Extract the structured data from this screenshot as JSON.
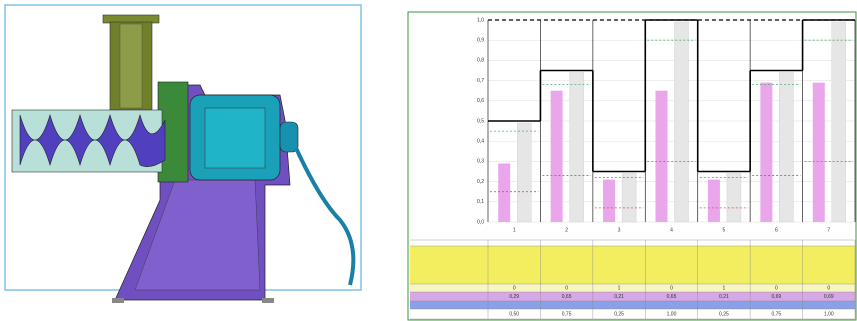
{
  "chart_data": {
    "type": "bar",
    "categories": [
      "1",
      "2",
      "3",
      "4",
      "5",
      "6",
      "7"
    ],
    "series": [
      {
        "kind": "bar",
        "color": "#eaa6ea",
        "values": [
          0.29,
          0.65,
          0.21,
          0.65,
          0.21,
          0.69,
          0.69
        ]
      },
      {
        "kind": "bar",
        "color": "#e6e6e6",
        "values": [
          0.49,
          0.74,
          0.24,
          0.99,
          0.24,
          0.74,
          0.99
        ]
      },
      {
        "kind": "step",
        "color": "#000000",
        "values": [
          0.5,
          0.75,
          0.25,
          1.0,
          0.25,
          0.75,
          1.0
        ]
      },
      {
        "kind": "dashed",
        "color": "#e05050",
        "values": [
          0.15,
          0.23,
          0.07,
          0.3,
          0.07,
          0.23,
          0.3
        ]
      },
      {
        "kind": "dashed",
        "color": "#50b070",
        "values": [
          0.45,
          0.68,
          0.22,
          0.9,
          0.22,
          0.68,
          0.9
        ]
      }
    ],
    "ylim": [
      0,
      1
    ],
    "yticks": [
      {
        "value": 0,
        "label": "0,0"
      },
      {
        "value": 0.1,
        "label": "0,1"
      },
      {
        "value": 0.2,
        "label": "0,2"
      },
      {
        "value": 0.3,
        "label": "0,3"
      },
      {
        "value": 0.4,
        "label": "0,4"
      },
      {
        "value": 0.5,
        "label": "0,5"
      },
      {
        "value": 0.6,
        "label": "0,6"
      },
      {
        "value": 0.7,
        "label": "0,7"
      },
      {
        "value": 0.8,
        "label": "0,8"
      },
      {
        "value": 0.9,
        "label": "0,9"
      },
      {
        "value": 1,
        "label": "1,0"
      }
    ],
    "grid": true,
    "table": {
      "rows": [
        [
          "0",
          "0",
          "1",
          "0",
          "1",
          "0",
          "0"
        ],
        [
          "0,29",
          "0,65",
          "0,21",
          "0,65",
          "0,21",
          "0,69",
          "0,69"
        ],
        [
          "0,50",
          "0,75",
          "0,25",
          "1,00",
          "0,25",
          "0,75",
          "1,00"
        ]
      ]
    }
  }
}
